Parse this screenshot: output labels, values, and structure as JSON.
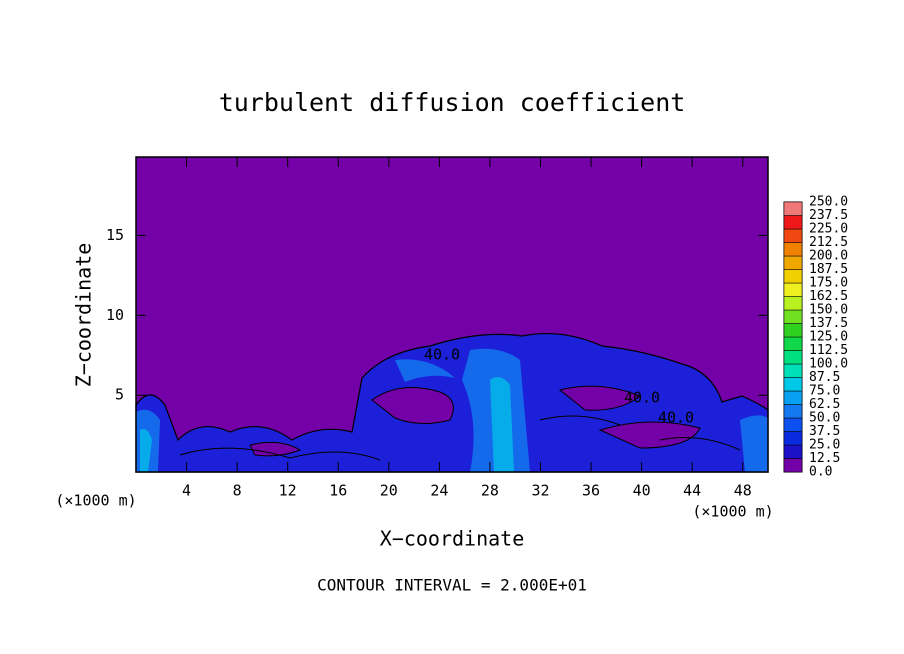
{
  "chart_data": {
    "type": "contour",
    "title": "turbulent diffusion coefficient",
    "x_label": "X−coordinate",
    "y_label": "Z−coordinate",
    "x_unit_label": "(×1000 m)",
    "footer": "CONTOUR INTERVAL = 2.000E+01",
    "contour_labels": [
      "40.0",
      "40.0",
      "40.0"
    ],
    "xlim": [
      0,
      50
    ],
    "ylim": [
      0.2,
      19.9
    ],
    "xticks": [
      4,
      8,
      12,
      16,
      20,
      24,
      28,
      32,
      36,
      40,
      44,
      48
    ],
    "yticks": [
      5,
      10,
      15
    ],
    "colorbar": {
      "levels": [
        {
          "value": 0,
          "label": "0.0"
        },
        12.5,
        {
          "value": 25,
          "label": "25.0"
        },
        37.5,
        {
          "value": 50,
          "label": "50.0"
        },
        62.5,
        {
          "value": 75,
          "label": "75.0"
        },
        87.5,
        {
          "value": 100,
          "label": "100.0"
        },
        112.5,
        {
          "value": 125,
          "label": "125.0"
        },
        137.5,
        {
          "value": 150,
          "label": "150.0"
        },
        162.5,
        {
          "value": 175,
          "label": "175.0"
        },
        187.5,
        {
          "value": 200,
          "label": "200.0"
        },
        212.5,
        {
          "value": 225,
          "label": "225.0"
        },
        237.5,
        {
          "value": 250,
          "label": "250.0"
        }
      ],
      "colors": [
        "#7400a8",
        "#1c10c8",
        "#0a2ae0",
        "#0c50f0",
        "#1478f0",
        "#08a0f0",
        "#00c8e8",
        "#00e0b8",
        "#00e080",
        "#10d848",
        "#30d020",
        "#70e020",
        "#b8f020",
        "#f0f020",
        "#f0d000",
        "#f0a800",
        "#f08000",
        "#f04810",
        "#f01818",
        "#f07878"
      ]
    }
  }
}
